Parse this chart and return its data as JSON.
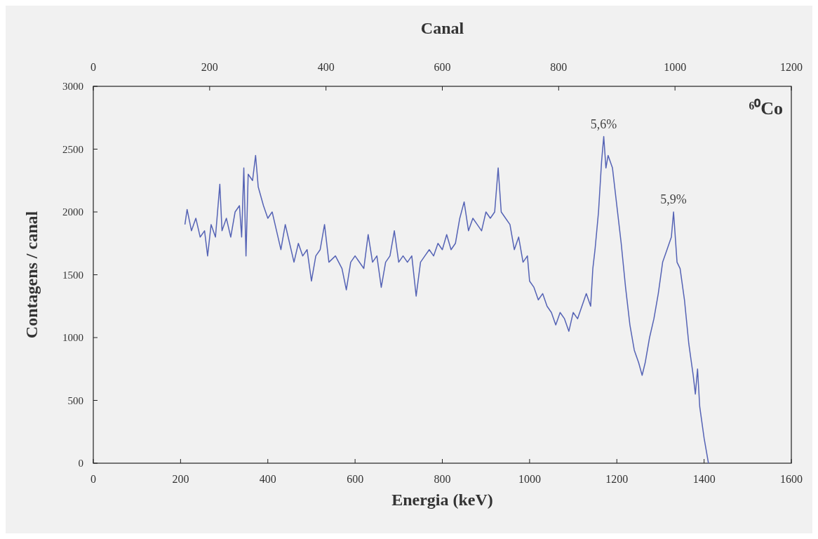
{
  "chart_data": {
    "type": "line",
    "xlabel": "Energia (keV)",
    "ylabel": "Contagens / canal",
    "x2label": "Canal",
    "xlim": [
      0,
      1600
    ],
    "xticks": [
      0,
      200,
      400,
      600,
      800,
      1000,
      1200,
      1400,
      1600
    ],
    "x2lim": [
      0,
      1200
    ],
    "x2ticks": [
      0,
      200,
      400,
      600,
      800,
      1000,
      1200
    ],
    "ylim": [
      0,
      3000
    ],
    "yticks": [
      0,
      500,
      1000,
      1500,
      2000,
      2500,
      3000
    ],
    "grid": false,
    "marker": "none",
    "line_style": "solid",
    "annotations": [
      {
        "text": "5,6%",
        "x": 1170,
        "y": 2600
      },
      {
        "text": "5,9%",
        "x": 1330,
        "y": 2000
      },
      "⁶⁰Co"
    ],
    "series": [
      {
        "color": "#5563b5",
        "x": [
          210,
          215,
          225,
          235,
          245,
          255,
          262,
          270,
          280,
          290,
          295,
          305,
          315,
          325,
          335,
          340,
          345,
          350,
          355,
          365,
          372,
          378,
          390,
          400,
          410,
          420,
          430,
          440,
          450,
          460,
          470,
          480,
          490,
          500,
          510,
          520,
          530,
          540,
          555,
          570,
          580,
          590,
          600,
          620,
          630,
          640,
          650,
          660,
          670,
          680,
          690,
          700,
          710,
          720,
          730,
          740,
          750,
          760,
          770,
          780,
          790,
          800,
          810,
          820,
          830,
          840,
          850,
          860,
          870,
          880,
          890,
          900,
          910,
          920,
          928,
          935,
          945,
          955,
          965,
          975,
          985,
          995,
          1000,
          1010,
          1020,
          1030,
          1040,
          1050,
          1060,
          1070,
          1080,
          1090,
          1100,
          1110,
          1120,
          1130,
          1140,
          1145,
          1150,
          1158,
          1165,
          1170,
          1175,
          1180,
          1190,
          1200,
          1210,
          1220,
          1230,
          1240,
          1250,
          1258,
          1265,
          1275,
          1285,
          1295,
          1305,
          1315,
          1325,
          1330,
          1338,
          1345,
          1355,
          1365,
          1375,
          1380,
          1385,
          1390,
          1400,
          1410
        ],
        "values": [
          1900,
          2020,
          1850,
          1950,
          1800,
          1850,
          1650,
          1900,
          1800,
          2220,
          1850,
          1950,
          1800,
          2000,
          2050,
          1800,
          2350,
          1650,
          2300,
          2250,
          2450,
          2200,
          2050,
          1950,
          2000,
          1850,
          1700,
          1900,
          1750,
          1600,
          1750,
          1650,
          1700,
          1450,
          1650,
          1700,
          1900,
          1600,
          1650,
          1550,
          1380,
          1600,
          1650,
          1550,
          1820,
          1600,
          1650,
          1400,
          1600,
          1650,
          1850,
          1600,
          1650,
          1600,
          1650,
          1330,
          1600,
          1650,
          1700,
          1650,
          1750,
          1700,
          1820,
          1700,
          1750,
          1950,
          2080,
          1850,
          1950,
          1900,
          1850,
          2000,
          1950,
          2000,
          2350,
          2000,
          1950,
          1900,
          1700,
          1800,
          1600,
          1650,
          1450,
          1400,
          1300,
          1350,
          1250,
          1200,
          1100,
          1200,
          1150,
          1050,
          1200,
          1150,
          1250,
          1350,
          1250,
          1550,
          1700,
          2000,
          2400,
          2600,
          2350,
          2450,
          2350,
          2050,
          1750,
          1400,
          1100,
          900,
          800,
          700,
          800,
          1000,
          1150,
          1350,
          1600,
          1700,
          1800,
          2000,
          1600,
          1550,
          1300,
          950,
          700,
          550,
          750,
          450,
          200,
          0
        ]
      }
    ]
  }
}
